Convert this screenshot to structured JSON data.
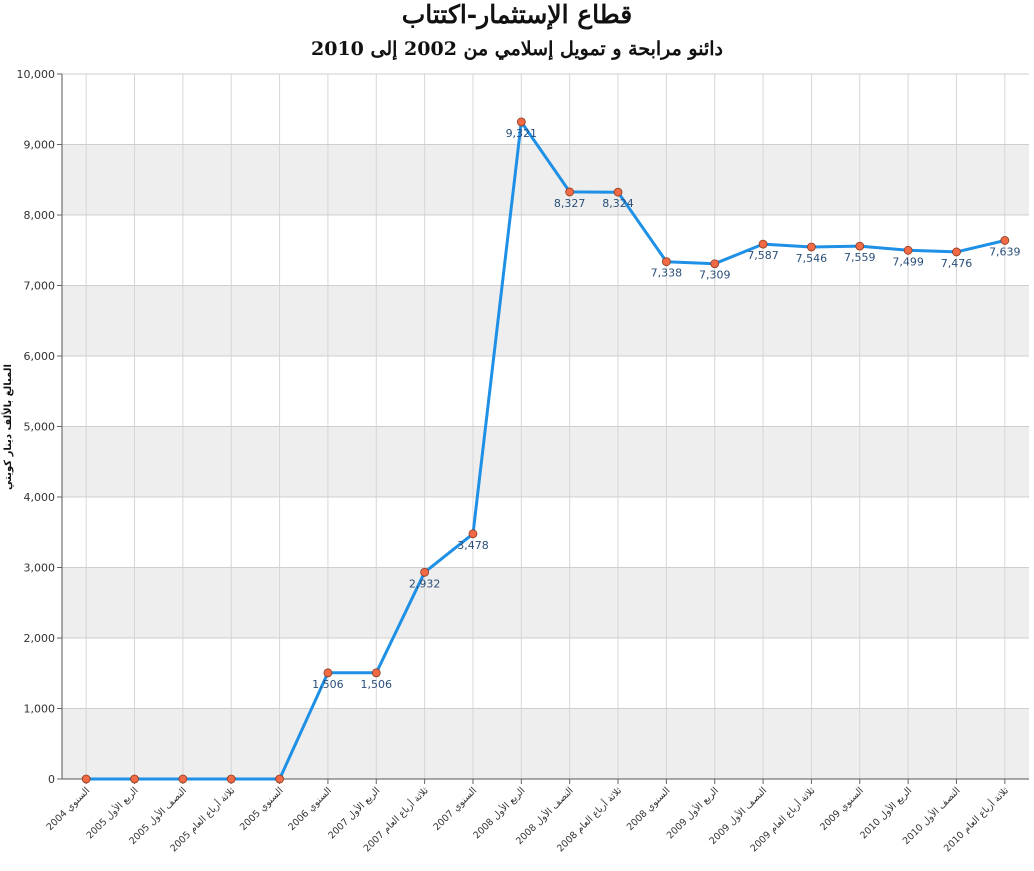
{
  "chart_data": {
    "type": "line",
    "title": "قطاع الإستثمار-اكتتاب",
    "subtitle": "دائنو مرابحة و تمويل إسلامي من 2002 إلى 2010",
    "ylabel": "المبالغ بالألف دينار كويتي",
    "ylim": [
      0,
      10000
    ],
    "yticks": [
      "0",
      "1,000",
      "2,000",
      "3,000",
      "4,000",
      "5,000",
      "6,000",
      "7,000",
      "8,000",
      "9,000",
      "10,000"
    ],
    "categories": [
      "السنوي 2004",
      "الربع الأول 2005",
      "النصف الأول 2005",
      "ثلاثة أرباع العام 2005",
      "السنوي 2005",
      "السنوي 2006",
      "الربع الأول 2007",
      "ثلاثة أرباع العام 2007",
      "السنوي 2007",
      "الربع الأول 2008",
      "النصف الأول 2008",
      "ثلاثة أرباع العام 2008",
      "السنوي 2008",
      "الربع الأول 2009",
      "النصف الأول 2009",
      "ثلاثة أرباع العام 2009",
      "السنوي 2009",
      "الربع الأول 2010",
      "النصف الأول 2010",
      "ثلاثة أرباع العام 2010"
    ],
    "values": [
      0,
      0,
      0,
      0,
      0,
      1506,
      1506,
      2932,
      3478,
      9321,
      8327,
      8324,
      7338,
      7309,
      7587,
      7546,
      7559,
      7499,
      7476,
      7639
    ],
    "data_labels": [
      "",
      "",
      "",
      "",
      "",
      "1,506",
      "1,506",
      "2,932",
      "3,478",
      "9,321",
      "8,327",
      "8,324",
      "7,338",
      "7,309",
      "7,587",
      "7,546",
      "7,559",
      "7,499",
      "7,476",
      "7,639"
    ],
    "line_color": "#1e90e6",
    "marker_color": "#f06a45",
    "band_color": "#eeeeee",
    "grid": true,
    "legend": "none"
  }
}
